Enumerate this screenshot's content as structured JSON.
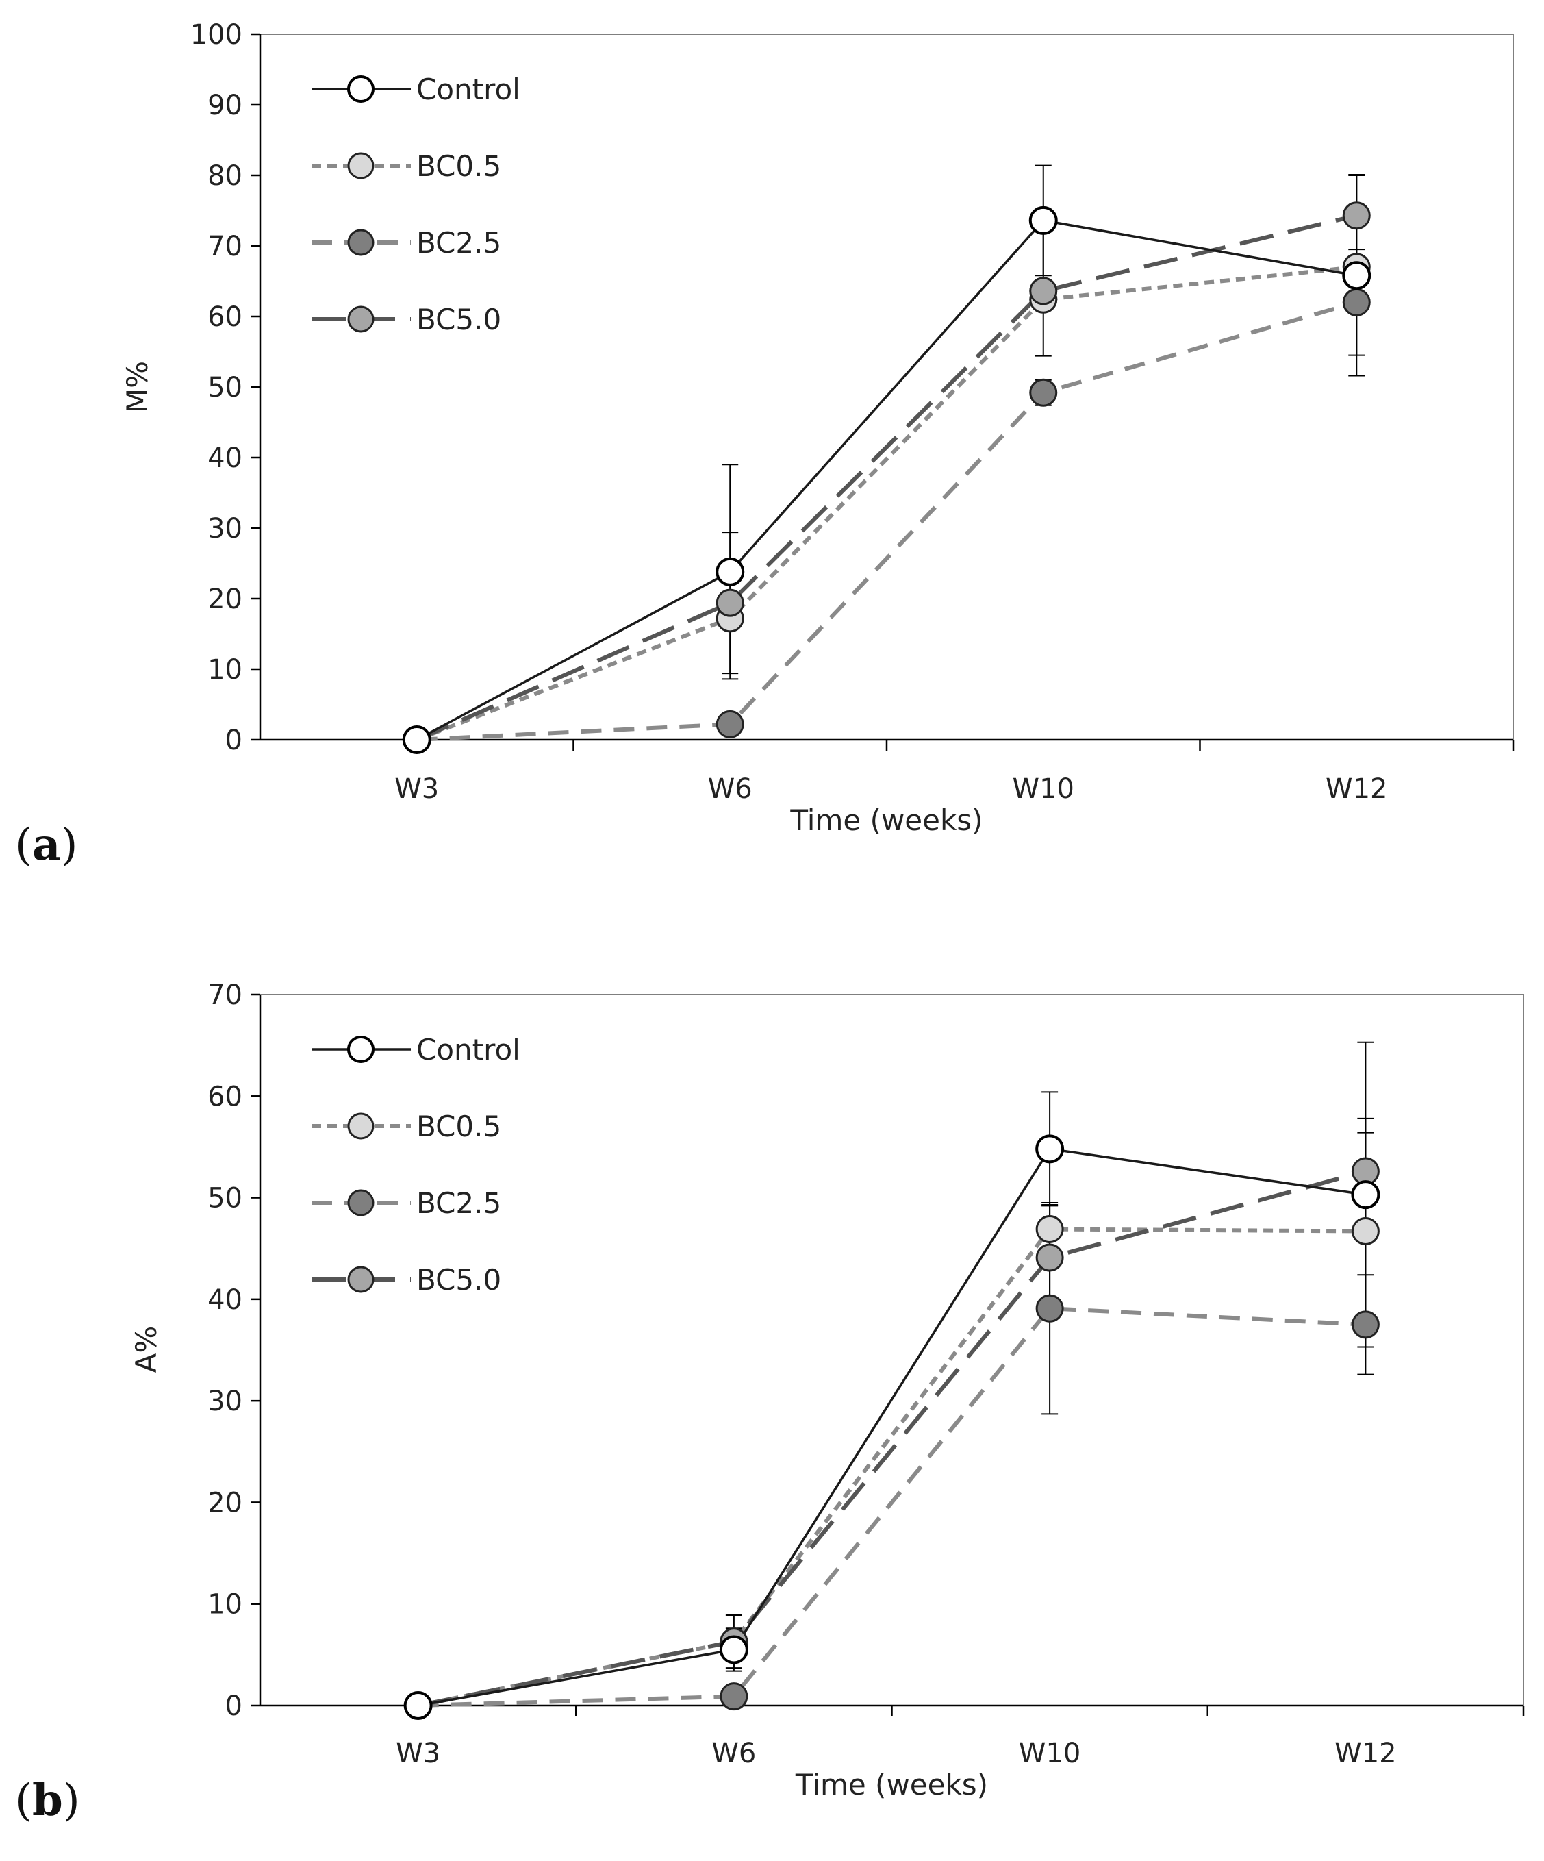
{
  "figure": {
    "panel_a_label": "a",
    "panel_b_label": "b"
  },
  "colors": {
    "control_stroke": "#1a1a1a",
    "bc05_stroke": "#8a8a8a",
    "bc25_stroke": "#8a8a8a",
    "bc50_stroke": "#555555",
    "bc05_fill": "#d9d9d9",
    "bc25_fill": "#7f7f7f",
    "bc50_fill": "#a6a6a6",
    "control_fill": "#ffffff",
    "axis": "#000000"
  },
  "chart_data": [
    {
      "type": "line",
      "panel": "a",
      "title": "",
      "xlabel": "Time (weeks)",
      "ylabel": "M%",
      "ylim": [
        0,
        100
      ],
      "yticks": [
        0,
        10,
        20,
        30,
        40,
        50,
        60,
        70,
        80,
        90,
        100
      ],
      "categories": [
        "W3",
        "W6",
        "W10",
        "W12"
      ],
      "legend_position": "top-left",
      "series": [
        {
          "name": "Control",
          "values": [
            0,
            23.8,
            73.6,
            65.8
          ],
          "errors": [
            0,
            15.2,
            7.8,
            14.2
          ],
          "style": "solid",
          "marker": "open"
        },
        {
          "name": "BC0.5",
          "values": [
            0,
            17.2,
            62.4,
            67.0
          ],
          "errors": [
            0,
            0,
            0,
            0
          ],
          "style": "dotted",
          "marker": "light"
        },
        {
          "name": "BC2.5",
          "values": [
            0,
            2.2,
            49.2,
            62.0
          ],
          "errors": [
            0,
            0,
            1.8,
            7.5
          ],
          "style": "dashed",
          "marker": "dark"
        },
        {
          "name": "BC5.0",
          "values": [
            0,
            19.4,
            63.6,
            74.3
          ],
          "errors": [
            0,
            10.0,
            9.2,
            5.8
          ],
          "style": "longdash",
          "marker": "medium"
        }
      ]
    },
    {
      "type": "line",
      "panel": "b",
      "title": "",
      "xlabel": "Time (weeks)",
      "ylabel": "A%",
      "ylim": [
        0,
        70
      ],
      "yticks": [
        0,
        10,
        20,
        30,
        40,
        50,
        60,
        70
      ],
      "categories": [
        "W3",
        "W6",
        "W10",
        "W12"
      ],
      "legend_position": "top-left",
      "series": [
        {
          "name": "Control",
          "values": [
            0,
            5.5,
            54.8,
            50.3
          ],
          "errors": [
            0,
            2.1,
            5.6,
            15.0
          ],
          "style": "solid",
          "marker": "open"
        },
        {
          "name": "BC0.5",
          "values": [
            0,
            6.3,
            46.9,
            46.7
          ],
          "errors": [
            0,
            2.6,
            0,
            9.7
          ],
          "style": "dotted",
          "marker": "light"
        },
        {
          "name": "BC2.5",
          "values": [
            0,
            0.9,
            39.1,
            37.5
          ],
          "errors": [
            0,
            0,
            10.4,
            4.9
          ],
          "style": "dashed",
          "marker": "dark"
        },
        {
          "name": "BC5.0",
          "values": [
            0,
            6.3,
            44.1,
            52.6
          ],
          "errors": [
            0,
            0,
            5.2,
            5.2
          ],
          "style": "longdash",
          "marker": "medium"
        }
      ]
    }
  ]
}
